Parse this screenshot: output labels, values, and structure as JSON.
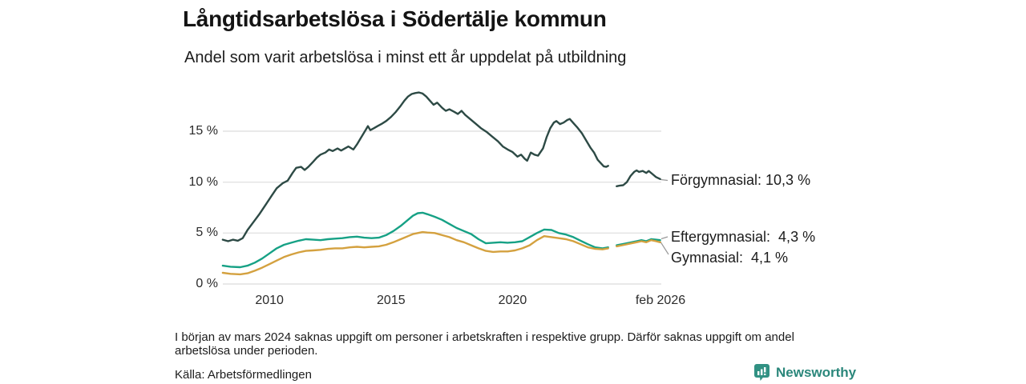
{
  "header": {
    "title": "Långtidsarbetslösa i Södertälje kommun",
    "subtitle": "Andel som varit arbetslösa i minst ett år uppdelat på utbildning"
  },
  "chart_data": {
    "type": "line",
    "unit": "%",
    "grid": true,
    "grid_color": "#e2e2e2",
    "note": "Lines have a gap around early 2024 (missing data)",
    "y_axis": {
      "range": [
        0,
        19.5
      ],
      "ticks": [
        {
          "label": "0 %",
          "value": 0
        },
        {
          "label": "5 %",
          "value": 5
        },
        {
          "label": "10 %",
          "value": 10
        },
        {
          "label": "15 %",
          "value": 15
        }
      ]
    },
    "x_axis": {
      "range_years": [
        2008.08,
        2026.08
      ],
      "ticks": [
        {
          "label": "2010",
          "year": 2010
        },
        {
          "label": "2015",
          "year": 2015
        },
        {
          "label": "2020",
          "year": 2020
        },
        {
          "label": "feb 2026",
          "year": 2026.083
        }
      ]
    },
    "series": [
      {
        "id": "forgymnasial",
        "name": "Förgymnasial",
        "end_label": "Förgymnasial: 10,3 %",
        "end_value": "10,3 %",
        "color": "#2d4a45",
        "points": [
          [
            2008.08,
            4.35
          ],
          [
            2008.3,
            4.2
          ],
          [
            2008.5,
            4.35
          ],
          [
            2008.7,
            4.25
          ],
          [
            2008.9,
            4.5
          ],
          [
            2009.1,
            5.3
          ],
          [
            2009.35,
            6.1
          ],
          [
            2009.6,
            6.9
          ],
          [
            2009.85,
            7.8
          ],
          [
            2010.1,
            8.7
          ],
          [
            2010.3,
            9.4
          ],
          [
            2010.55,
            9.9
          ],
          [
            2010.75,
            10.15
          ],
          [
            2010.95,
            10.9
          ],
          [
            2011.1,
            11.4
          ],
          [
            2011.3,
            11.5
          ],
          [
            2011.45,
            11.2
          ],
          [
            2011.6,
            11.5
          ],
          [
            2011.8,
            12.0
          ],
          [
            2011.95,
            12.4
          ],
          [
            2012.1,
            12.7
          ],
          [
            2012.3,
            12.9
          ],
          [
            2012.45,
            13.2
          ],
          [
            2012.6,
            13.05
          ],
          [
            2012.8,
            13.3
          ],
          [
            2012.95,
            13.1
          ],
          [
            2013.1,
            13.3
          ],
          [
            2013.25,
            13.5
          ],
          [
            2013.45,
            13.2
          ],
          [
            2013.6,
            13.7
          ],
          [
            2013.75,
            14.3
          ],
          [
            2013.95,
            15.1
          ],
          [
            2014.05,
            15.5
          ],
          [
            2014.15,
            15.1
          ],
          [
            2014.3,
            15.3
          ],
          [
            2014.45,
            15.5
          ],
          [
            2014.6,
            15.7
          ],
          [
            2014.8,
            16.0
          ],
          [
            2015.0,
            16.4
          ],
          [
            2015.2,
            16.9
          ],
          [
            2015.4,
            17.5
          ],
          [
            2015.55,
            18.0
          ],
          [
            2015.7,
            18.4
          ],
          [
            2015.85,
            18.65
          ],
          [
            2016.0,
            18.75
          ],
          [
            2016.15,
            18.8
          ],
          [
            2016.3,
            18.7
          ],
          [
            2016.45,
            18.4
          ],
          [
            2016.6,
            18.0
          ],
          [
            2016.75,
            17.6
          ],
          [
            2016.9,
            17.8
          ],
          [
            2017.1,
            17.3
          ],
          [
            2017.25,
            17.0
          ],
          [
            2017.4,
            17.15
          ],
          [
            2017.6,
            16.9
          ],
          [
            2017.75,
            16.7
          ],
          [
            2017.9,
            17.0
          ],
          [
            2018.05,
            16.6
          ],
          [
            2018.25,
            16.2
          ],
          [
            2018.45,
            15.8
          ],
          [
            2018.7,
            15.3
          ],
          [
            2018.95,
            14.9
          ],
          [
            2019.15,
            14.5
          ],
          [
            2019.4,
            14.0
          ],
          [
            2019.6,
            13.5
          ],
          [
            2019.8,
            13.2
          ],
          [
            2020.0,
            12.95
          ],
          [
            2020.2,
            12.5
          ],
          [
            2020.35,
            12.7
          ],
          [
            2020.5,
            12.3
          ],
          [
            2020.6,
            12.1
          ],
          [
            2020.75,
            12.9
          ],
          [
            2020.9,
            12.7
          ],
          [
            2021.05,
            12.6
          ],
          [
            2021.25,
            13.3
          ],
          [
            2021.4,
            14.4
          ],
          [
            2021.55,
            15.3
          ],
          [
            2021.7,
            15.85
          ],
          [
            2021.8,
            16.0
          ],
          [
            2021.95,
            15.7
          ],
          [
            2022.1,
            15.85
          ],
          [
            2022.25,
            16.1
          ],
          [
            2022.35,
            16.2
          ],
          [
            2022.5,
            15.8
          ],
          [
            2022.65,
            15.4
          ],
          [
            2022.85,
            14.8
          ],
          [
            2023.0,
            14.2
          ],
          [
            2023.2,
            13.4
          ],
          [
            2023.35,
            12.9
          ],
          [
            2023.5,
            12.2
          ],
          [
            2023.65,
            11.8
          ],
          [
            2023.75,
            11.55
          ],
          [
            2023.85,
            11.5
          ],
          [
            2023.93,
            11.6
          ],
          null,
          [
            2024.28,
            9.6
          ],
          [
            2024.4,
            9.65
          ],
          [
            2024.55,
            9.7
          ],
          [
            2024.7,
            10.0
          ],
          [
            2024.85,
            10.6
          ],
          [
            2025.0,
            11.0
          ],
          [
            2025.1,
            11.15
          ],
          [
            2025.2,
            11.0
          ],
          [
            2025.35,
            11.1
          ],
          [
            2025.5,
            10.9
          ],
          [
            2025.6,
            11.1
          ],
          [
            2025.75,
            10.8
          ],
          [
            2025.9,
            10.5
          ],
          [
            2026.07,
            10.3
          ]
        ]
      },
      {
        "id": "eftergymnasial",
        "name": "Eftergymnasial",
        "end_label": "Eftergymnasial:  4,3 %",
        "end_value": "4,3 %",
        "color": "#16a185",
        "points": [
          [
            2008.08,
            1.8
          ],
          [
            2008.4,
            1.7
          ],
          [
            2008.8,
            1.65
          ],
          [
            2009.1,
            1.8
          ],
          [
            2009.4,
            2.1
          ],
          [
            2009.7,
            2.5
          ],
          [
            2010.0,
            3.0
          ],
          [
            2010.3,
            3.5
          ],
          [
            2010.6,
            3.85
          ],
          [
            2010.9,
            4.05
          ],
          [
            2011.2,
            4.25
          ],
          [
            2011.5,
            4.4
          ],
          [
            2011.8,
            4.35
          ],
          [
            2012.1,
            4.3
          ],
          [
            2012.4,
            4.4
          ],
          [
            2012.7,
            4.45
          ],
          [
            2013.0,
            4.5
          ],
          [
            2013.3,
            4.6
          ],
          [
            2013.6,
            4.65
          ],
          [
            2013.9,
            4.55
          ],
          [
            2014.2,
            4.5
          ],
          [
            2014.5,
            4.55
          ],
          [
            2014.8,
            4.8
          ],
          [
            2015.1,
            5.2
          ],
          [
            2015.4,
            5.7
          ],
          [
            2015.7,
            6.3
          ],
          [
            2015.9,
            6.7
          ],
          [
            2016.1,
            6.95
          ],
          [
            2016.3,
            7.0
          ],
          [
            2016.5,
            6.85
          ],
          [
            2016.8,
            6.6
          ],
          [
            2017.1,
            6.3
          ],
          [
            2017.4,
            5.9
          ],
          [
            2017.7,
            5.5
          ],
          [
            2018.0,
            5.2
          ],
          [
            2018.3,
            4.9
          ],
          [
            2018.6,
            4.4
          ],
          [
            2018.9,
            4.0
          ],
          [
            2019.2,
            4.05
          ],
          [
            2019.5,
            4.1
          ],
          [
            2019.8,
            4.05
          ],
          [
            2020.1,
            4.1
          ],
          [
            2020.4,
            4.2
          ],
          [
            2020.7,
            4.6
          ],
          [
            2021.0,
            5.0
          ],
          [
            2021.3,
            5.35
          ],
          [
            2021.6,
            5.3
          ],
          [
            2021.9,
            5.0
          ],
          [
            2022.2,
            4.85
          ],
          [
            2022.5,
            4.6
          ],
          [
            2022.8,
            4.25
          ],
          [
            2023.1,
            3.9
          ],
          [
            2023.4,
            3.6
          ],
          [
            2023.7,
            3.5
          ],
          [
            2023.93,
            3.6
          ],
          null,
          [
            2024.28,
            3.8
          ],
          [
            2024.6,
            3.95
          ],
          [
            2024.9,
            4.1
          ],
          [
            2025.1,
            4.2
          ],
          [
            2025.3,
            4.3
          ],
          [
            2025.5,
            4.2
          ],
          [
            2025.7,
            4.4
          ],
          [
            2025.9,
            4.35
          ],
          [
            2026.07,
            4.3
          ]
        ]
      },
      {
        "id": "gymnasial",
        "name": "Gymnasial",
        "end_label": "Gymnasial:  4,1 %",
        "end_value": "4,1 %",
        "color": "#d4a13f",
        "points": [
          [
            2008.08,
            1.1
          ],
          [
            2008.4,
            1.0
          ],
          [
            2008.8,
            0.95
          ],
          [
            2009.1,
            1.05
          ],
          [
            2009.4,
            1.3
          ],
          [
            2009.7,
            1.6
          ],
          [
            2010.0,
            1.95
          ],
          [
            2010.3,
            2.3
          ],
          [
            2010.6,
            2.65
          ],
          [
            2010.9,
            2.9
          ],
          [
            2011.2,
            3.1
          ],
          [
            2011.5,
            3.25
          ],
          [
            2011.8,
            3.3
          ],
          [
            2012.1,
            3.35
          ],
          [
            2012.4,
            3.45
          ],
          [
            2012.7,
            3.5
          ],
          [
            2013.0,
            3.5
          ],
          [
            2013.3,
            3.6
          ],
          [
            2013.6,
            3.65
          ],
          [
            2013.9,
            3.6
          ],
          [
            2014.2,
            3.65
          ],
          [
            2014.5,
            3.7
          ],
          [
            2014.8,
            3.85
          ],
          [
            2015.1,
            4.1
          ],
          [
            2015.4,
            4.4
          ],
          [
            2015.7,
            4.7
          ],
          [
            2015.9,
            4.9
          ],
          [
            2016.1,
            5.0
          ],
          [
            2016.3,
            5.1
          ],
          [
            2016.5,
            5.05
          ],
          [
            2016.8,
            5.0
          ],
          [
            2017.1,
            4.8
          ],
          [
            2017.4,
            4.6
          ],
          [
            2017.7,
            4.3
          ],
          [
            2018.0,
            4.1
          ],
          [
            2018.3,
            3.8
          ],
          [
            2018.6,
            3.5
          ],
          [
            2018.9,
            3.25
          ],
          [
            2019.2,
            3.15
          ],
          [
            2019.5,
            3.2
          ],
          [
            2019.8,
            3.2
          ],
          [
            2020.1,
            3.3
          ],
          [
            2020.4,
            3.5
          ],
          [
            2020.7,
            3.8
          ],
          [
            2021.0,
            4.3
          ],
          [
            2021.3,
            4.7
          ],
          [
            2021.6,
            4.6
          ],
          [
            2021.9,
            4.5
          ],
          [
            2022.2,
            4.4
          ],
          [
            2022.5,
            4.2
          ],
          [
            2022.8,
            3.9
          ],
          [
            2023.1,
            3.6
          ],
          [
            2023.4,
            3.45
          ],
          [
            2023.7,
            3.4
          ],
          [
            2023.93,
            3.5
          ],
          null,
          [
            2024.28,
            3.7
          ],
          [
            2024.6,
            3.85
          ],
          [
            2024.9,
            4.0
          ],
          [
            2025.1,
            4.1
          ],
          [
            2025.3,
            4.2
          ],
          [
            2025.5,
            4.1
          ],
          [
            2025.7,
            4.3
          ],
          [
            2025.9,
            4.2
          ],
          [
            2026.07,
            4.1
          ]
        ]
      }
    ]
  },
  "footnote": "I början av mars 2024 saknas uppgift om personer i arbetskraften i respektive grupp. Därför saknas uppgift om andel arbetslösa under perioden.",
  "source": "Källa: Arbetsförmedlingen",
  "logo": {
    "text": "Newsworthy",
    "icon": "bar-chart-speech-bubble",
    "icon_color": "#319183",
    "text_color": "#2b877b"
  }
}
